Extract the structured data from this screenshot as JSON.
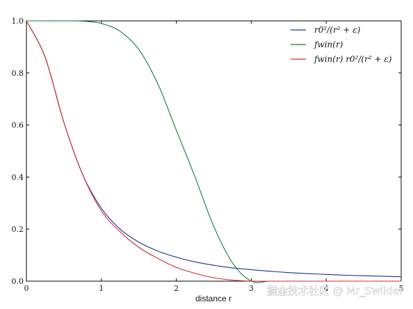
{
  "chart_data": {
    "type": "line",
    "title": "",
    "xlabel": "distance r",
    "ylabel": "",
    "xlim": [
      0,
      5
    ],
    "ylim": [
      0,
      1.0
    ],
    "xticks": [
      "0",
      "1",
      "2",
      "3",
      "4",
      "5"
    ],
    "yticks": [
      "0.0",
      "0.2",
      "0.4",
      "0.6",
      "0.8",
      "1.0"
    ],
    "grid": false,
    "legend": "top-right",
    "x": [
      0,
      0.25,
      0.5,
      0.75,
      1.0,
      1.25,
      1.5,
      1.75,
      2.0,
      2.25,
      2.5,
      2.75,
      3.0,
      3.25,
      3.5,
      3.75,
      4.0,
      4.25,
      4.5,
      4.75,
      5.0
    ],
    "series": [
      {
        "name": "r0²/(r² + ε)",
        "color": "#1f2f8c",
        "values": [
          1.0,
          0.86,
          0.61,
          0.41,
          0.28,
          0.2,
          0.15,
          0.116,
          0.092,
          0.074,
          0.061,
          0.051,
          0.044,
          0.038,
          0.033,
          0.029,
          0.026,
          0.023,
          0.021,
          0.019,
          0.017
        ]
      },
      {
        "name": "f_win(r)",
        "color": "#0f7a3a",
        "values": [
          1.0,
          1.0,
          1.0,
          0.999,
          0.99,
          0.96,
          0.89,
          0.76,
          0.58,
          0.4,
          0.21,
          0.07,
          0.0,
          0.0,
          0.0,
          0.0,
          0.0,
          0.0,
          0.0,
          0.0,
          0.0
        ]
      },
      {
        "name": "f_win(r) r0²/(r² + ε)",
        "color": "#d62728",
        "values": [
          1.0,
          0.86,
          0.61,
          0.41,
          0.27,
          0.19,
          0.13,
          0.088,
          0.053,
          0.03,
          0.013,
          0.004,
          0.0,
          0.0,
          0.0,
          0.0,
          0.0,
          0.0,
          0.0,
          0.0,
          0.0
        ]
      }
    ]
  },
  "legend_items": [
    {
      "label": "r0²/(r² + ε)",
      "color": "#1f2f8c"
    },
    {
      "label": "fwin(r)",
      "color": "#0f7a3a"
    },
    {
      "label": "fwin(r) r0²/(r² + ε)",
      "color": "#d62728"
    }
  ],
  "watermark": "掘金技术社区 @ Mr_Swilder"
}
